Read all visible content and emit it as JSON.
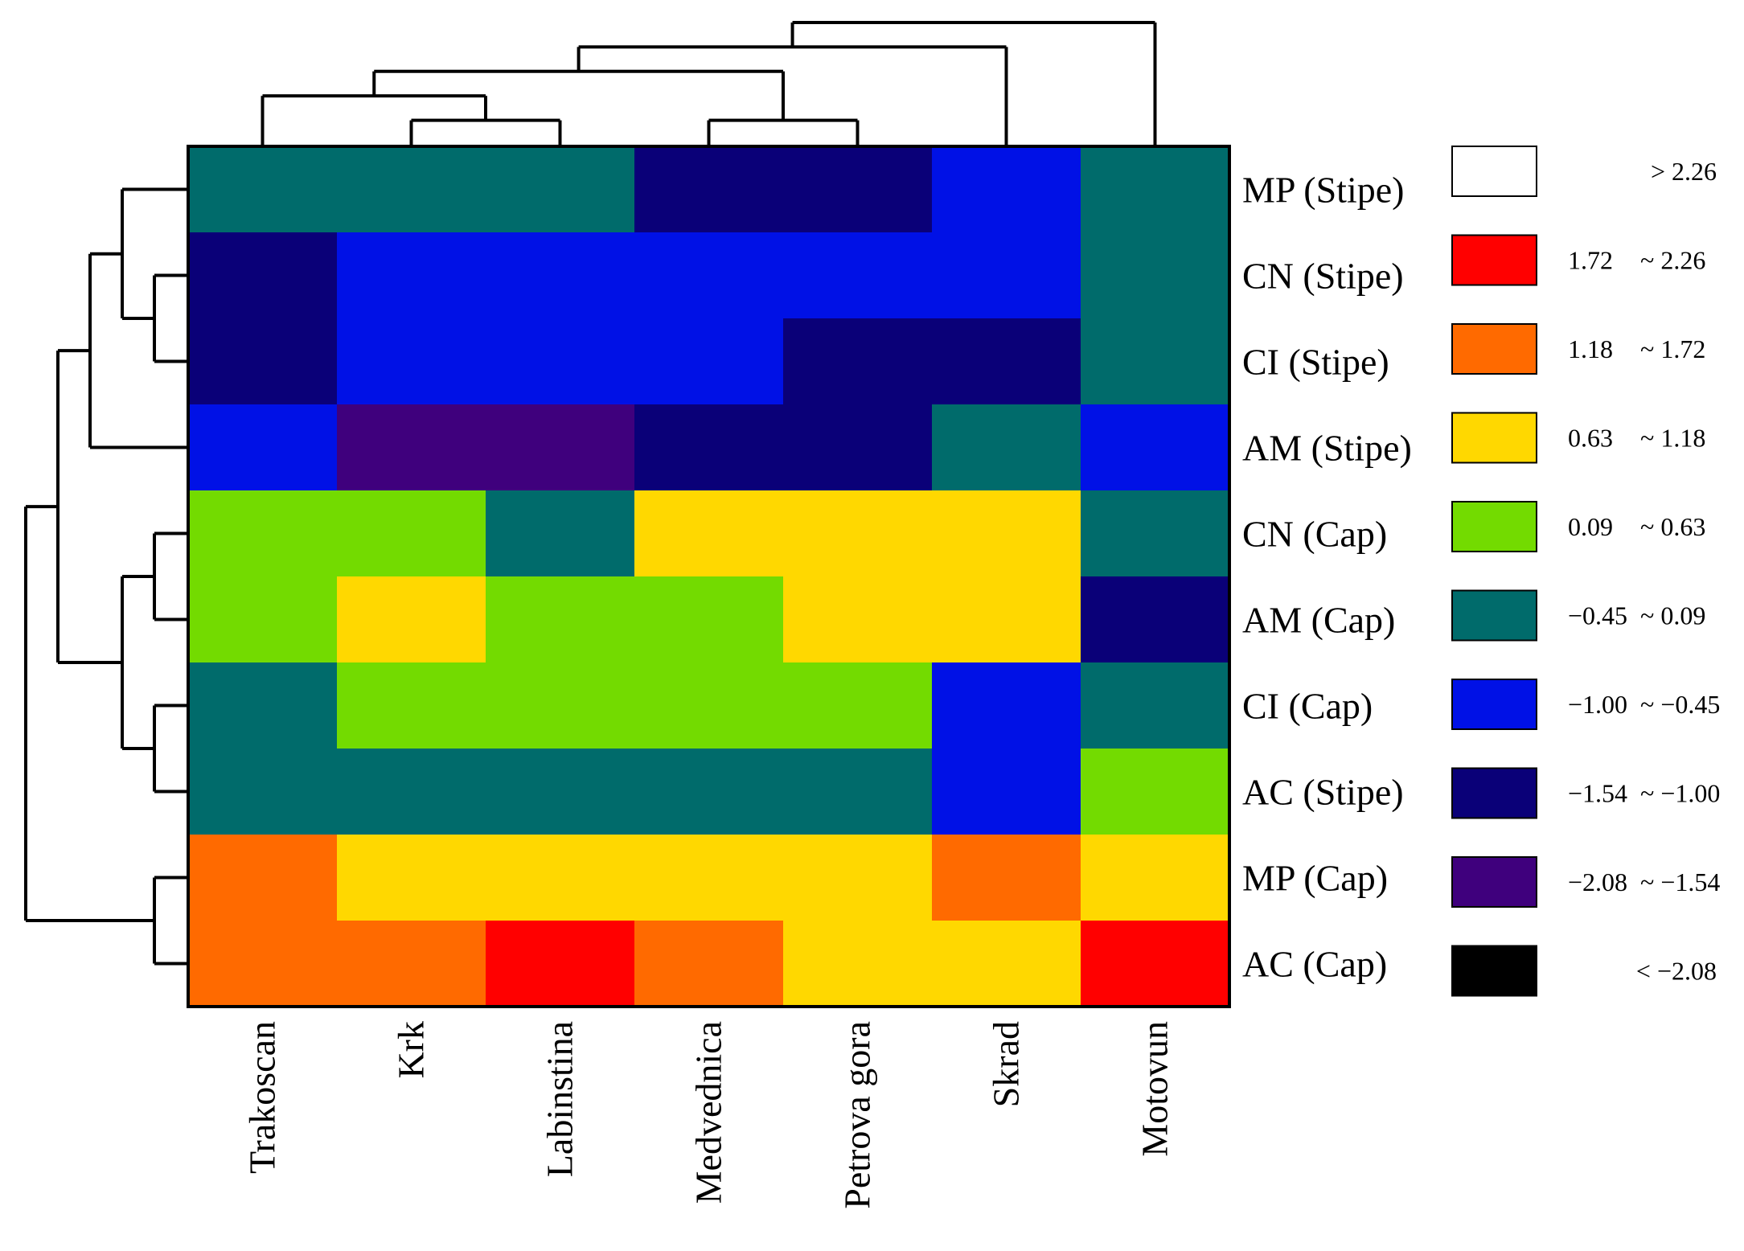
{
  "chart_data": {
    "type": "heatmap",
    "title": "",
    "columns": [
      "Trakoscan",
      "Krk",
      "Labinstina",
      "Medvednica",
      "Petrova gora",
      "Skrad",
      "Motovun"
    ],
    "rows": [
      "MP (Stipe)",
      "CN (Stipe)",
      "CI (Stipe)",
      "AM (Stipe)",
      "CN (Cap)",
      "AM (Cap)",
      "CI (Cap)",
      "AC (Stipe)",
      "MP (Cap)",
      "AC (Cap)"
    ],
    "cell_bins": [
      [
        5,
        5,
        5,
        7,
        7,
        6,
        5
      ],
      [
        7,
        6,
        6,
        6,
        6,
        6,
        5
      ],
      [
        7,
        6,
        6,
        6,
        7,
        7,
        5
      ],
      [
        6,
        8,
        8,
        7,
        7,
        5,
        6
      ],
      [
        4,
        4,
        5,
        3,
        3,
        3,
        5
      ],
      [
        4,
        3,
        4,
        4,
        3,
        3,
        7
      ],
      [
        5,
        4,
        4,
        4,
        4,
        6,
        5
      ],
      [
        5,
        5,
        5,
        5,
        5,
        6,
        4
      ],
      [
        2,
        3,
        3,
        3,
        3,
        2,
        3
      ],
      [
        2,
        2,
        1,
        2,
        3,
        3,
        1
      ]
    ],
    "legend": [
      {
        "low": "",
        "high": "> 2.26",
        "color": "#ffffff"
      },
      {
        "low": "1.72",
        "high": "~ 2.26",
        "color": "#ff0000"
      },
      {
        "low": "1.18",
        "high": "~ 1.72",
        "color": "#ff6a00"
      },
      {
        "low": "0.63",
        "high": "~ 1.18",
        "color": "#ffd800"
      },
      {
        "low": "0.09",
        "high": "~ 0.63",
        "color": "#73db00"
      },
      {
        "low": "−0.45",
        "high": "~ 0.09",
        "color": "#006b6b"
      },
      {
        "low": "−1.00",
        "high": "~ −0.45",
        "color": "#0011e6"
      },
      {
        "low": "−1.54",
        "high": "~ −1.00",
        "color": "#0a0078"
      },
      {
        "low": "−2.08",
        "high": "~ −1.54",
        "color": "#3f007d"
      },
      {
        "low": "",
        "high": "< −2.08",
        "color": "#000000"
      }
    ],
    "column_dendrogram": "((((Trakoscan,(Krk,Labinstina)),(Medvednica,Petrova gora)),Skrad),Motovun)",
    "row_dendrogram": "((((MP (Stipe),(CN (Stipe),CI (Stipe))),AM (Stipe)),((CN (Cap),AM (Cap)),(CI (Cap),AC (Stipe)))),(MP (Cap),AC (Cap)))"
  }
}
